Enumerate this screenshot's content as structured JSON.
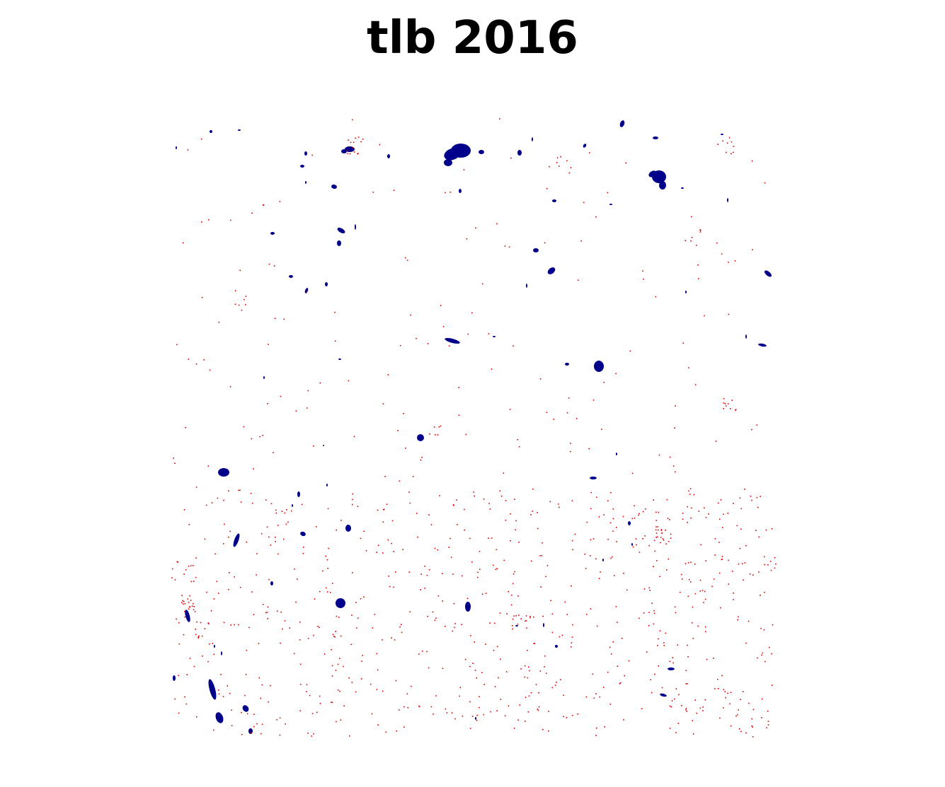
{
  "title": "tlb 2016",
  "colors": {
    "background": "#ffffff",
    "water_body": "#00008b",
    "change_pixel": "#e00000",
    "title_text": "#000000"
  }
}
